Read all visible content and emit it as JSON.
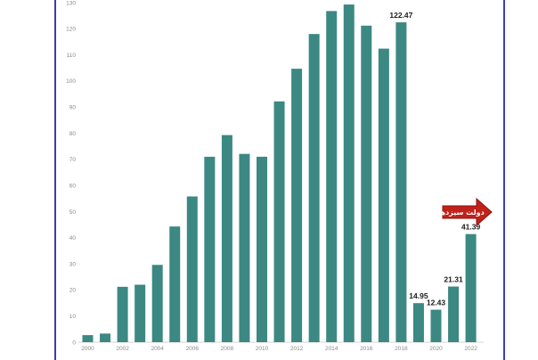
{
  "colors": {
    "bar": "#3c8883",
    "frame": "#3e3fa6",
    "axis": "#d6d6d6",
    "badge_fill": "#c0221a",
    "badge_stroke": "#8a1410"
  },
  "chart_data": {
    "type": "bar",
    "title": "",
    "xlabel": "",
    "ylabel": "",
    "ylim": [
      0,
      130
    ],
    "ytick_step": 10,
    "categories": [
      "2000",
      "2001",
      "2002",
      "2003",
      "2004",
      "2005",
      "2006",
      "2007",
      "2008",
      "2009",
      "2010",
      "2011",
      "2012",
      "2013",
      "2014",
      "2015",
      "2016",
      "2017",
      "2018",
      "2019",
      "2020",
      "2021",
      "2022"
    ],
    "values": [
      2.7,
      3.3,
      21.2,
      22.0,
      29.6,
      44.3,
      55.8,
      71.0,
      79.3,
      72.1,
      71.0,
      92.2,
      104.7,
      118.0,
      126.8,
      129.3,
      121.2,
      112.4,
      122.47,
      14.95,
      12.43,
      21.31,
      41.39
    ],
    "xtick_labels": [
      "2000",
      "",
      "2002",
      "",
      "2004",
      "",
      "2006",
      "",
      "2008",
      "",
      "2010",
      "",
      "2012",
      "",
      "2014",
      "",
      "2016",
      "",
      "2018",
      "",
      "2020",
      "",
      "2022"
    ],
    "data_labels": [
      {
        "index": 18,
        "text": "122.47"
      },
      {
        "index": 19,
        "text": "14.95"
      },
      {
        "index": 20,
        "text": "12.43"
      },
      {
        "index": 21,
        "text": "21.31"
      },
      {
        "index": 22,
        "text": "41.39"
      }
    ],
    "annotation": {
      "text": "دولت سیزدهم",
      "direction": "right-arrow",
      "near_index": 22
    }
  }
}
